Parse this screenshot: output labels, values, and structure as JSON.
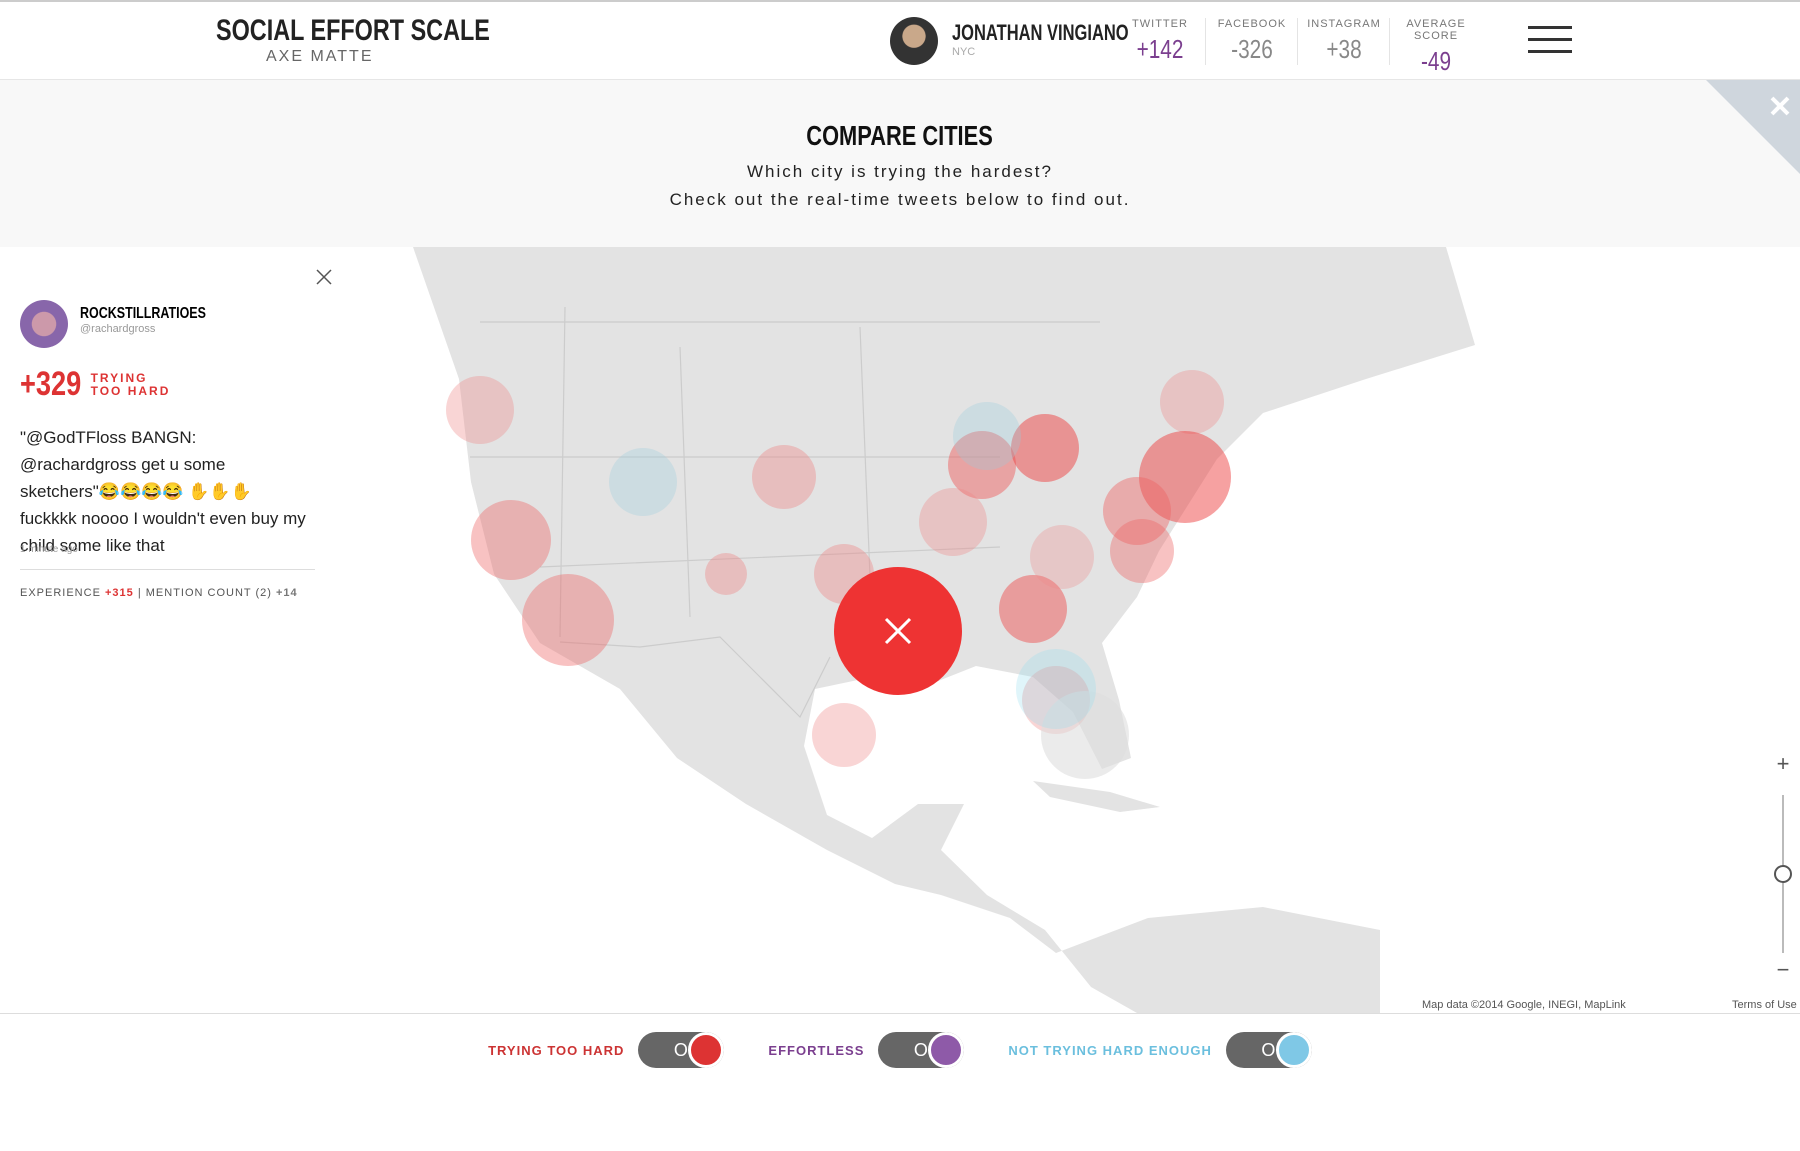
{
  "header": {
    "brand": "SOCIAL EFFORT SCALE",
    "brand_sub": "AXE MATTE",
    "user": {
      "name": "JONATHAN VINGIANO",
      "location": "NYC"
    },
    "stats": [
      {
        "label": "TWITTER",
        "value": "+142"
      },
      {
        "label": "FACEBOOK",
        "value": "-326"
      },
      {
        "label": "INSTAGRAM",
        "value": "+38"
      },
      {
        "label": "AVERAGE SCORE",
        "value": "-49"
      }
    ]
  },
  "compare": {
    "title": "COMPARE CITIES",
    "lines": [
      "Which city is trying the hardest?",
      "Check out the real-time tweets below to find out."
    ]
  },
  "tweet": {
    "name": "ROCKSTILLRATIOES",
    "handle": "@rachardgross",
    "score": "+329",
    "score_label": "TRYING TOO HARD",
    "text": "\"@GodTFloss BANGN: @rachardgross get u some sketchers\"😂😂😂😂 ✋✋✋ fuckkkk noooo I wouldn't even buy my child some like that",
    "time": "1 minute ago",
    "experience_label": "EXPERIENCE",
    "experience_value": "+315",
    "separator": "|",
    "mention_label": "MENTION COUNT (2)",
    "mention_value": "+14"
  },
  "legend": [
    {
      "label": "TRYING TOO HARD",
      "state": "ON"
    },
    {
      "label": "EFFORTLESS",
      "state": "ON"
    },
    {
      "label": "NOT TRYING HARD ENOUGH",
      "state": "ON"
    }
  ],
  "map": {
    "attribution": "Map data ©2014 Google, INEGI, MapLink",
    "terms": "Terms of Use",
    "zoom_in": "+",
    "zoom_out": "−"
  }
}
